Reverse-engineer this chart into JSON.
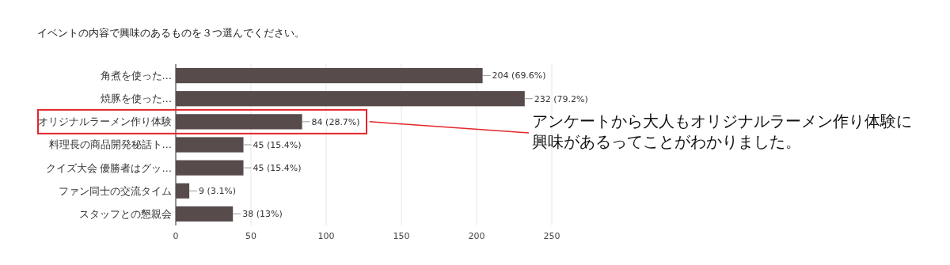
{
  "chart_data": {
    "type": "bar",
    "orientation": "horizontal",
    "title": "イベントの内容で興味のあるものを３つ選んでください。",
    "categories": [
      "角煮を使った…",
      "焼豚を使った…",
      "オリジナルラーメン作り体験",
      "料理長の商品開発秘話ト…",
      "クイズ大会 優勝者はグッ…",
      "ファン同士の交流タイム",
      "スタッフとの懇親会"
    ],
    "values": [
      204,
      232,
      84,
      45,
      45,
      9,
      38
    ],
    "value_labels": [
      "204 (69.6%)",
      "232 (79.2%)",
      "84 (28.7%)",
      "45 (15.4%)",
      "45 (15.4%)",
      "9 (3.1%)",
      "38 (13%)"
    ],
    "color": "#574b4b",
    "xlim": [
      0,
      250
    ],
    "xticks": [
      0,
      50,
      100,
      150,
      200,
      250
    ],
    "grid": "x",
    "annotations": [
      "アンケートから大人もオリジナルラーメン作り体験に興味があるってことがわかりました。"
    ]
  }
}
